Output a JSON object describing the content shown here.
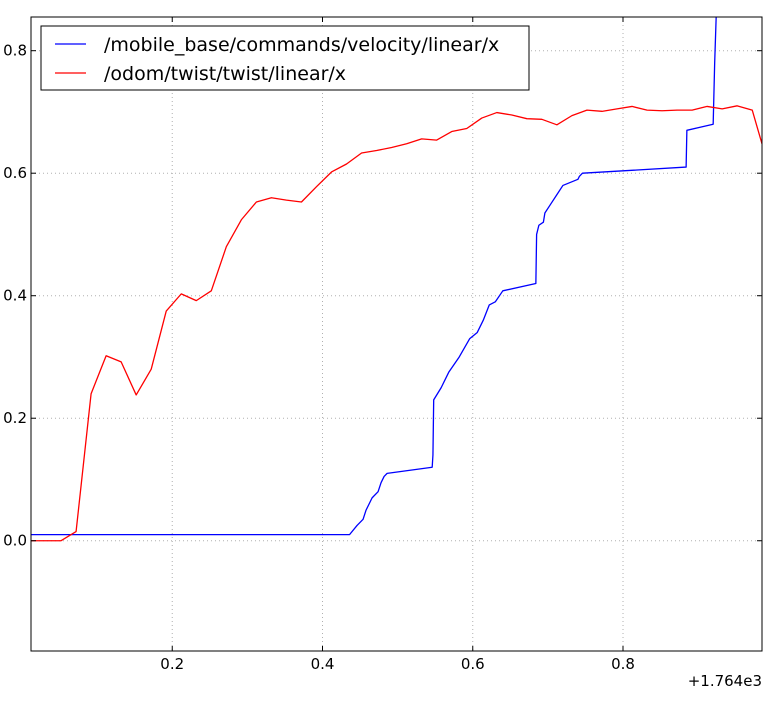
{
  "chart_data": {
    "type": "line",
    "title": "",
    "xlabel": "",
    "ylabel": "",
    "x_offset_label": "+1.764e3",
    "xlim": [
      0.012,
      0.985
    ],
    "ylim": [
      -0.18,
      0.855
    ],
    "xticks": [
      0.2,
      0.4,
      0.6,
      0.8
    ],
    "xtick_labels": [
      "0.2",
      "0.4",
      "0.6",
      "0.8"
    ],
    "yticks": [
      0.0,
      0.2,
      0.4,
      0.6,
      0.8
    ],
    "ytick_labels": [
      "0.0",
      "0.2",
      "0.4",
      "0.6",
      "0.8"
    ],
    "grid": true,
    "legend_position": "top-left",
    "series": [
      {
        "name": "/mobile_base/commands/velocity/linear/x",
        "color": "#0000ff",
        "x": [
          0.012,
          0.436,
          0.446,
          0.454,
          0.458,
          0.462,
          0.466,
          0.474,
          0.478,
          0.482,
          0.486,
          0.546,
          0.547,
          0.548,
          0.558,
          0.568,
          0.582,
          0.596,
          0.606,
          0.614,
          0.622,
          0.63,
          0.64,
          0.684,
          0.685,
          0.688,
          0.694,
          0.696,
          0.704,
          0.712,
          0.72,
          0.74,
          0.742,
          0.746,
          0.884,
          0.885,
          0.92,
          0.922,
          0.924
        ],
        "y": [
          0.01,
          0.01,
          0.025,
          0.035,
          0.05,
          0.06,
          0.07,
          0.08,
          0.095,
          0.105,
          0.11,
          0.12,
          0.14,
          0.23,
          0.25,
          0.275,
          0.3,
          0.33,
          0.34,
          0.36,
          0.385,
          0.39,
          0.408,
          0.42,
          0.5,
          0.515,
          0.52,
          0.535,
          0.55,
          0.565,
          0.58,
          0.59,
          0.595,
          0.6,
          0.61,
          0.67,
          0.68,
          0.78,
          0.855
        ]
      },
      {
        "name": "/odom/twist/twist/linear/x",
        "color": "#ff0000",
        "x": [
          0.012,
          0.052,
          0.072,
          0.092,
          0.112,
          0.132,
          0.152,
          0.172,
          0.192,
          0.212,
          0.232,
          0.252,
          0.272,
          0.292,
          0.312,
          0.332,
          0.352,
          0.372,
          0.392,
          0.412,
          0.432,
          0.452,
          0.472,
          0.492,
          0.512,
          0.532,
          0.552,
          0.572,
          0.592,
          0.612,
          0.632,
          0.652,
          0.672,
          0.692,
          0.712,
          0.732,
          0.752,
          0.772,
          0.792,
          0.812,
          0.832,
          0.852,
          0.872,
          0.892,
          0.912,
          0.932,
          0.952,
          0.972,
          0.985
        ],
        "y": [
          0.0,
          0.0,
          0.015,
          0.24,
          0.302,
          0.292,
          0.238,
          0.28,
          0.375,
          0.403,
          0.392,
          0.408,
          0.48,
          0.524,
          0.553,
          0.56,
          0.556,
          0.553,
          0.578,
          0.602,
          0.615,
          0.633,
          0.637,
          0.642,
          0.648,
          0.656,
          0.654,
          0.668,
          0.673,
          0.69,
          0.699,
          0.695,
          0.689,
          0.688,
          0.679,
          0.694,
          0.703,
          0.701,
          0.705,
          0.709,
          0.703,
          0.702,
          0.703,
          0.703,
          0.709,
          0.705,
          0.71,
          0.703,
          0.648
        ]
      }
    ]
  }
}
